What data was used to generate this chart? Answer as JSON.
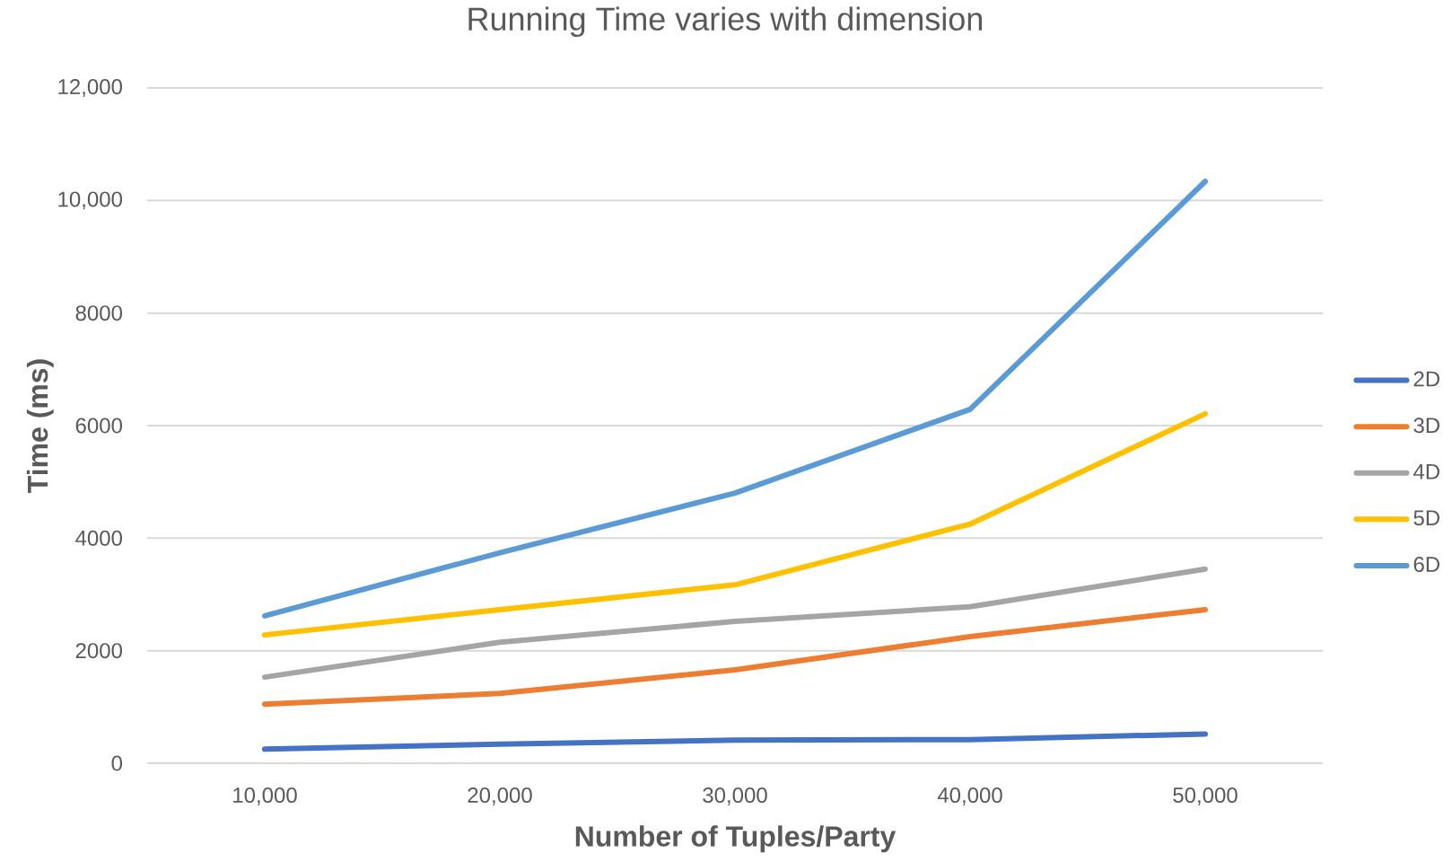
{
  "chart_data": {
    "type": "line",
    "title": "Running Time varies with dimension",
    "xlabel": "Number of Tuples/Party",
    "ylabel": "Time (ms)",
    "categories": [
      "10,000",
      "20,000",
      "30,000",
      "40,000",
      "50,000"
    ],
    "series": [
      {
        "name": "2D",
        "color": "#4472c4",
        "values": [
          250,
          340,
          410,
          420,
          520
        ]
      },
      {
        "name": "3D",
        "color": "#ed7d31",
        "values": [
          1050,
          1240,
          1660,
          2250,
          2730
        ]
      },
      {
        "name": "4D",
        "color": "#a5a5a5",
        "values": [
          1530,
          2150,
          2520,
          2780,
          3450
        ]
      },
      {
        "name": "5D",
        "color": "#ffc000",
        "values": [
          2280,
          2730,
          3170,
          4250,
          6210
        ]
      },
      {
        "name": "6D",
        "color": "#5b9bd5",
        "values": [
          2620,
          3740,
          4800,
          6290,
          10340
        ]
      }
    ],
    "ylim": [
      0,
      12000
    ],
    "yticks": [
      0,
      2000,
      4000,
      6000,
      8000,
      {
        "value": 10000,
        "label": "10,000"
      },
      {
        "value": 12000,
        "label": "12,000"
      }
    ],
    "grid": "y",
    "legend": "right",
    "marker": "none",
    "line_style": "solid"
  }
}
